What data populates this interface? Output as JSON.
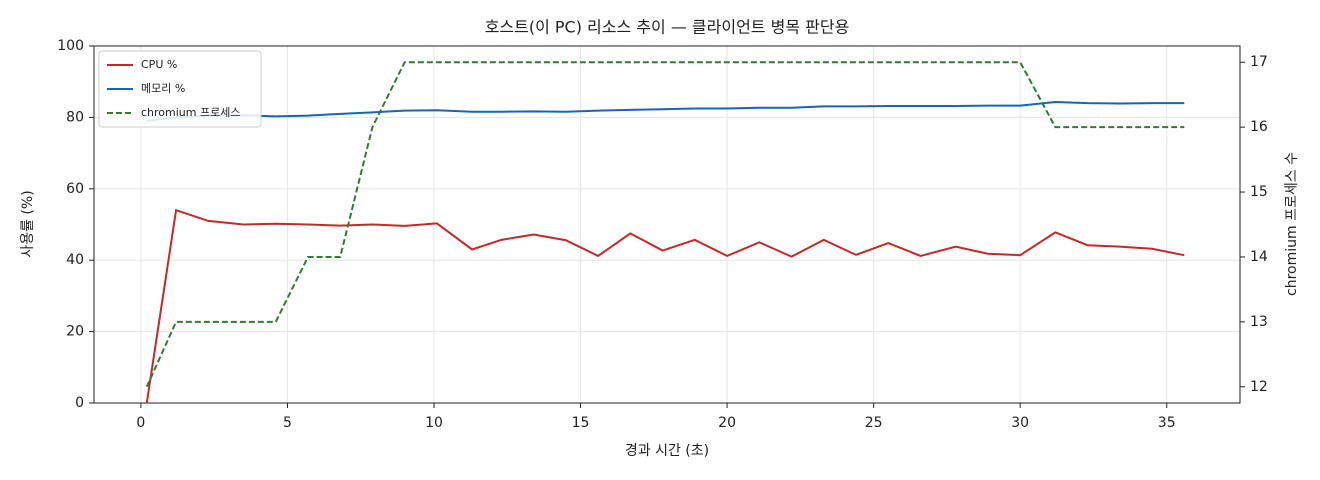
{
  "chart_data": {
    "type": "line",
    "title": "호스트(이 PC) 리소스 추이 — 클라이언트 병목 판단용",
    "xlabel": "경과 시간 (초)",
    "ylabel": "사용률 (%)",
    "y2label": "chromium 프로세스 수",
    "x": [
      0.2,
      1.2,
      2.3,
      3.5,
      4.6,
      5.7,
      6.8,
      7.9,
      9.0,
      10.1,
      11.3,
      12.3,
      13.4,
      14.5,
      15.6,
      16.7,
      17.8,
      18.9,
      20.0,
      21.1,
      22.2,
      23.3,
      24.4,
      25.5,
      26.6,
      27.8,
      28.9,
      30.0,
      31.2,
      32.3,
      33.4,
      34.5,
      35.6
    ],
    "series": [
      {
        "name": "CPU %",
        "color": "#c62828",
        "linestyle": "solid",
        "values": [
          0,
          54,
          51,
          50,
          50.2,
          50,
          49.7,
          50,
          49.6,
          50.3,
          43,
          45.7,
          47.2,
          45.6,
          41.2,
          47.5,
          42.7,
          45.7,
          41.2,
          45,
          41,
          45.7,
          41.5,
          44.8,
          41.2,
          43.8,
          41.8,
          41.4,
          47.8,
          44.2,
          43.8,
          43.2,
          41.4
        ]
      },
      {
        "name": "메모리 %",
        "color": "#1565c0",
        "linestyle": "solid",
        "values": [
          79,
          80,
          80.5,
          80.6,
          80.3,
          80.5,
          81,
          81.4,
          81.9,
          82,
          81.6,
          81.6,
          81.7,
          81.6,
          81.9,
          82.1,
          82.3,
          82.5,
          82.5,
          82.7,
          82.7,
          83.1,
          83.1,
          83.2,
          83.2,
          83.2,
          83.3,
          83.3,
          84.3,
          84,
          83.9,
          84,
          84
        ]
      },
      {
        "name": "chromium 프로세스",
        "color": "#2e7d32",
        "linestyle": "dashed",
        "axis": "y2",
        "values": [
          12,
          13,
          13,
          13,
          13,
          14,
          14,
          16,
          17,
          17,
          17,
          17,
          17,
          17,
          17,
          17,
          17,
          17,
          17,
          17,
          17,
          17,
          17,
          17,
          17,
          17,
          17,
          17,
          16,
          16,
          16,
          16,
          16
        ]
      }
    ],
    "xlim": [
      -1.6,
      37.5
    ],
    "xticks": [
      0,
      5,
      10,
      15,
      20,
      25,
      30,
      35
    ],
    "ylim": [
      0,
      100
    ],
    "yticks": [
      0,
      20,
      40,
      60,
      80,
      100
    ],
    "y2lim": [
      11.75,
      17.25
    ],
    "y2ticks": [
      12,
      13,
      14,
      15,
      16,
      17
    ],
    "grid": true,
    "legend": "upper left"
  }
}
